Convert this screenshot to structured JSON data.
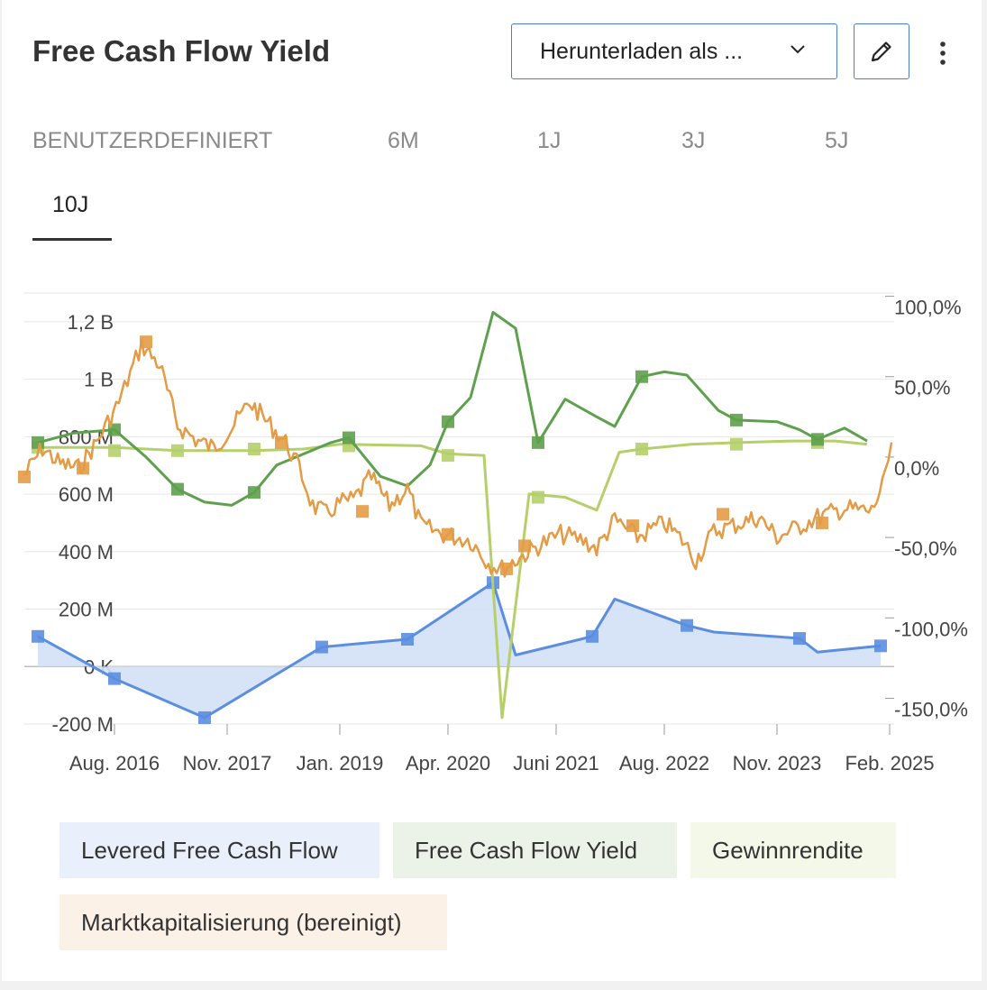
{
  "header": {
    "title": "Free Cash Flow Yield",
    "download_label": "Herunterladen als ...",
    "edit_icon": "pencil-icon",
    "more_icon": "more-vertical-icon",
    "chevron_icon": "chevron-down-icon"
  },
  "tabs": [
    {
      "label": "BENUTZERDEFINIERT",
      "active": false
    },
    {
      "label": "6M",
      "active": false
    },
    {
      "label": "1J",
      "active": false
    },
    {
      "label": "3J",
      "active": false
    },
    {
      "label": "5J",
      "active": false
    },
    {
      "label": "10J",
      "active": true
    }
  ],
  "colors": {
    "levered_fcf": "#5b8ee0",
    "levered_fcf_fill": "#d3e0f5",
    "fcf_yield": "#5fa04e",
    "gewinnrendite": "#b5cf6b",
    "marktkap": "#e39b45",
    "grid": "#e6e6e6",
    "zero_line": "#bdbdbd"
  },
  "chart_data": {
    "type": "line",
    "x_domain": [
      2015.5,
      2025.15
    ],
    "x_ticks": [
      {
        "label": "Aug. 2016",
        "value": 2016.5
      },
      {
        "label": "Nov. 2017",
        "value": 2017.75
      },
      {
        "label": "Jan. 2019",
        "value": 2019.0
      },
      {
        "label": "Apr. 2020",
        "value": 2020.2
      },
      {
        "label": "Juni 2021",
        "value": 2021.4
      },
      {
        "label": "Aug. 2022",
        "value": 2022.6
      },
      {
        "label": "Nov. 2023",
        "value": 2023.85
      },
      {
        "label": "Feb. 2025",
        "value": 2025.1
      }
    ],
    "left_axis": {
      "range": [
        -200,
        1300
      ],
      "unit": "M",
      "ticks": [
        {
          "label": "-200 M",
          "value": -200
        },
        {
          "label": "0 K",
          "value": 0
        },
        {
          "label": "200 M",
          "value": 200
        },
        {
          "label": "400 M",
          "value": 400
        },
        {
          "label": "600 M",
          "value": 600
        },
        {
          "label": "800 M",
          "value": 800
        },
        {
          "label": "1 B",
          "value": 1000
        },
        {
          "label": "1,2 B",
          "value": 1200
        }
      ]
    },
    "right_axis": {
      "range": [
        -166,
        102
      ],
      "unit": "%",
      "ticks": [
        {
          "label": "100,0%",
          "value": 100
        },
        {
          "label": "50,0%",
          "value": 50
        },
        {
          "label": "0,0%",
          "value": 0
        },
        {
          "label": "-50,0%",
          "value": -50
        },
        {
          "label": "-100,0%",
          "value": -100
        },
        {
          "label": "-150,0%",
          "value": -150
        }
      ]
    },
    "series": [
      {
        "name": "Levered Free Cash Flow",
        "axis": "left",
        "points": [
          [
            2015.65,
            105
          ],
          [
            2016.5,
            -42
          ],
          [
            2017.5,
            -178
          ],
          [
            2018.8,
            68
          ],
          [
            2019.75,
            95
          ],
          [
            2020.7,
            292
          ],
          [
            2020.95,
            40
          ],
          [
            2021.8,
            105
          ],
          [
            2022.05,
            235
          ],
          [
            2022.85,
            143
          ],
          [
            2023.15,
            120
          ],
          [
            2024.1,
            98
          ],
          [
            2024.3,
            50
          ],
          [
            2025.0,
            72
          ]
        ],
        "markers": [
          [
            2015.65,
            105
          ],
          [
            2016.5,
            -42
          ],
          [
            2017.5,
            -178
          ],
          [
            2018.8,
            68
          ],
          [
            2019.75,
            95
          ],
          [
            2020.7,
            292
          ],
          [
            2021.8,
            105
          ],
          [
            2022.85,
            143
          ],
          [
            2024.1,
            98
          ],
          [
            2025.0,
            72
          ]
        ]
      },
      {
        "name": "Free Cash Flow Yield",
        "axis": "right",
        "points": [
          [
            2015.65,
            9
          ],
          [
            2016.05,
            15
          ],
          [
            2016.5,
            17
          ],
          [
            2016.85,
            0
          ],
          [
            2017.2,
            -20
          ],
          [
            2017.5,
            -28
          ],
          [
            2017.8,
            -30
          ],
          [
            2018.05,
            -22
          ],
          [
            2018.3,
            -5
          ],
          [
            2018.6,
            2
          ],
          [
            2018.9,
            9
          ],
          [
            2019.1,
            12
          ],
          [
            2019.45,
            -12
          ],
          [
            2019.75,
            -18
          ],
          [
            2020.0,
            -5
          ],
          [
            2020.2,
            22
          ],
          [
            2020.45,
            37
          ],
          [
            2020.7,
            90
          ],
          [
            2020.95,
            80
          ],
          [
            2021.2,
            9
          ],
          [
            2021.5,
            36
          ],
          [
            2021.85,
            25
          ],
          [
            2022.05,
            19
          ],
          [
            2022.35,
            50
          ],
          [
            2022.6,
            53
          ],
          [
            2022.85,
            51
          ],
          [
            2023.2,
            29
          ],
          [
            2023.4,
            23
          ],
          [
            2023.85,
            22
          ],
          [
            2024.1,
            17
          ],
          [
            2024.3,
            11
          ],
          [
            2024.6,
            18
          ],
          [
            2024.85,
            10
          ]
        ],
        "markers": [
          [
            2015.65,
            9
          ],
          [
            2016.5,
            17
          ],
          [
            2017.2,
            -20
          ],
          [
            2018.05,
            -22
          ],
          [
            2019.1,
            12
          ],
          [
            2020.2,
            22
          ],
          [
            2021.2,
            9
          ],
          [
            2022.35,
            50
          ],
          [
            2023.4,
            23
          ],
          [
            2024.3,
            11
          ]
        ]
      },
      {
        "name": "Gewinnrendite",
        "axis": "right",
        "points": [
          [
            2015.65,
            6
          ],
          [
            2016.5,
            6
          ],
          [
            2017.2,
            4
          ],
          [
            2018.05,
            4
          ],
          [
            2018.6,
            5
          ],
          [
            2019.0,
            8
          ],
          [
            2019.9,
            7
          ],
          [
            2020.2,
            2
          ],
          [
            2020.6,
            1
          ],
          [
            2020.8,
            -162
          ],
          [
            2021.1,
            -23
          ],
          [
            2021.5,
            -25
          ],
          [
            2021.85,
            -33
          ],
          [
            2022.1,
            3
          ],
          [
            2022.35,
            5
          ],
          [
            2022.9,
            8
          ],
          [
            2023.4,
            9
          ],
          [
            2024.0,
            10
          ],
          [
            2024.5,
            10
          ],
          [
            2024.85,
            8
          ]
        ],
        "markers": [
          [
            2015.65,
            6
          ],
          [
            2016.5,
            4
          ],
          [
            2017.2,
            4
          ],
          [
            2018.05,
            5
          ],
          [
            2019.1,
            7
          ],
          [
            2020.2,
            1
          ],
          [
            2021.2,
            -25
          ],
          [
            2022.35,
            5
          ],
          [
            2023.4,
            8
          ],
          [
            2024.3,
            9
          ]
        ]
      },
      {
        "name": "Marktkapitalisierung (bereinigt)",
        "axis": "left",
        "points": [
          [
            2015.5,
            665
          ],
          [
            2015.7,
            760
          ],
          [
            2015.9,
            705
          ],
          [
            2016.1,
            690
          ],
          [
            2016.3,
            780
          ],
          [
            2016.55,
            920
          ],
          [
            2016.8,
            1120
          ],
          [
            2017.0,
            1050
          ],
          [
            2017.2,
            840
          ],
          [
            2017.4,
            790
          ],
          [
            2017.6,
            760
          ],
          [
            2017.8,
            830
          ],
          [
            2018.0,
            920
          ],
          [
            2018.2,
            850
          ],
          [
            2018.4,
            780
          ],
          [
            2018.55,
            690
          ],
          [
            2018.7,
            560
          ],
          [
            2018.85,
            530
          ],
          [
            2019.0,
            570
          ],
          [
            2019.15,
            580
          ],
          [
            2019.35,
            660
          ],
          [
            2019.55,
            560
          ],
          [
            2019.75,
            620
          ],
          [
            2019.9,
            490
          ],
          [
            2020.15,
            460
          ],
          [
            2020.45,
            440
          ],
          [
            2020.65,
            360
          ],
          [
            2020.8,
            340
          ],
          [
            2021.0,
            380
          ],
          [
            2021.2,
            420
          ],
          [
            2021.45,
            460
          ],
          [
            2021.7,
            440
          ],
          [
            2021.85,
            410
          ],
          [
            2022.05,
            510
          ],
          [
            2022.3,
            450
          ],
          [
            2022.6,
            500
          ],
          [
            2022.8,
            440
          ],
          [
            2022.95,
            370
          ],
          [
            2023.15,
            470
          ],
          [
            2023.45,
            500
          ],
          [
            2023.65,
            520
          ],
          [
            2023.85,
            450
          ],
          [
            2024.05,
            480
          ],
          [
            2024.3,
            520
          ],
          [
            2024.6,
            550
          ],
          [
            2024.9,
            540
          ],
          [
            2025.05,
            650
          ],
          [
            2025.12,
            780
          ]
        ],
        "markers": [
          [
            2015.5,
            660
          ],
          [
            2016.15,
            690
          ],
          [
            2016.85,
            1130
          ],
          [
            2018.35,
            780
          ],
          [
            2019.25,
            540
          ],
          [
            2020.2,
            460
          ],
          [
            2020.85,
            340
          ],
          [
            2021.05,
            420
          ],
          [
            2022.25,
            490
          ],
          [
            2023.25,
            530
          ],
          [
            2024.35,
            500
          ]
        ]
      }
    ],
    "legend": [
      "Levered Free Cash Flow",
      "Free Cash Flow Yield",
      "Gewinnrendite",
      "Marktkapitalisierung (bereinigt)"
    ],
    "title": "Free Cash Flow Yield"
  }
}
